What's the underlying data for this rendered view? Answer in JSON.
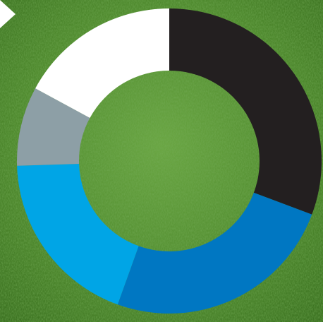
{
  "background": {
    "texture": "grass",
    "colors": [
      "#3f7a22",
      "#5a9636",
      "#6fa845",
      "#2f6317"
    ]
  },
  "corner_marker": {
    "icon": "white-triangle-arrow-icon",
    "color": "#ffffff"
  },
  "chart_data": {
    "type": "pie",
    "variant": "donut",
    "title": "",
    "legend": "none",
    "start_angle_deg": 0,
    "direction": "clockwise",
    "slices": [
      {
        "value": 30.7,
        "color": "#231f20"
      },
      {
        "value": 24.8,
        "color": "#0077c2"
      },
      {
        "value": 19.0,
        "color": "#00a5e6"
      },
      {
        "value": 8.4,
        "color": "#8d9fa6"
      },
      {
        "value": 17.1,
        "color": "#ffffff"
      }
    ]
  }
}
